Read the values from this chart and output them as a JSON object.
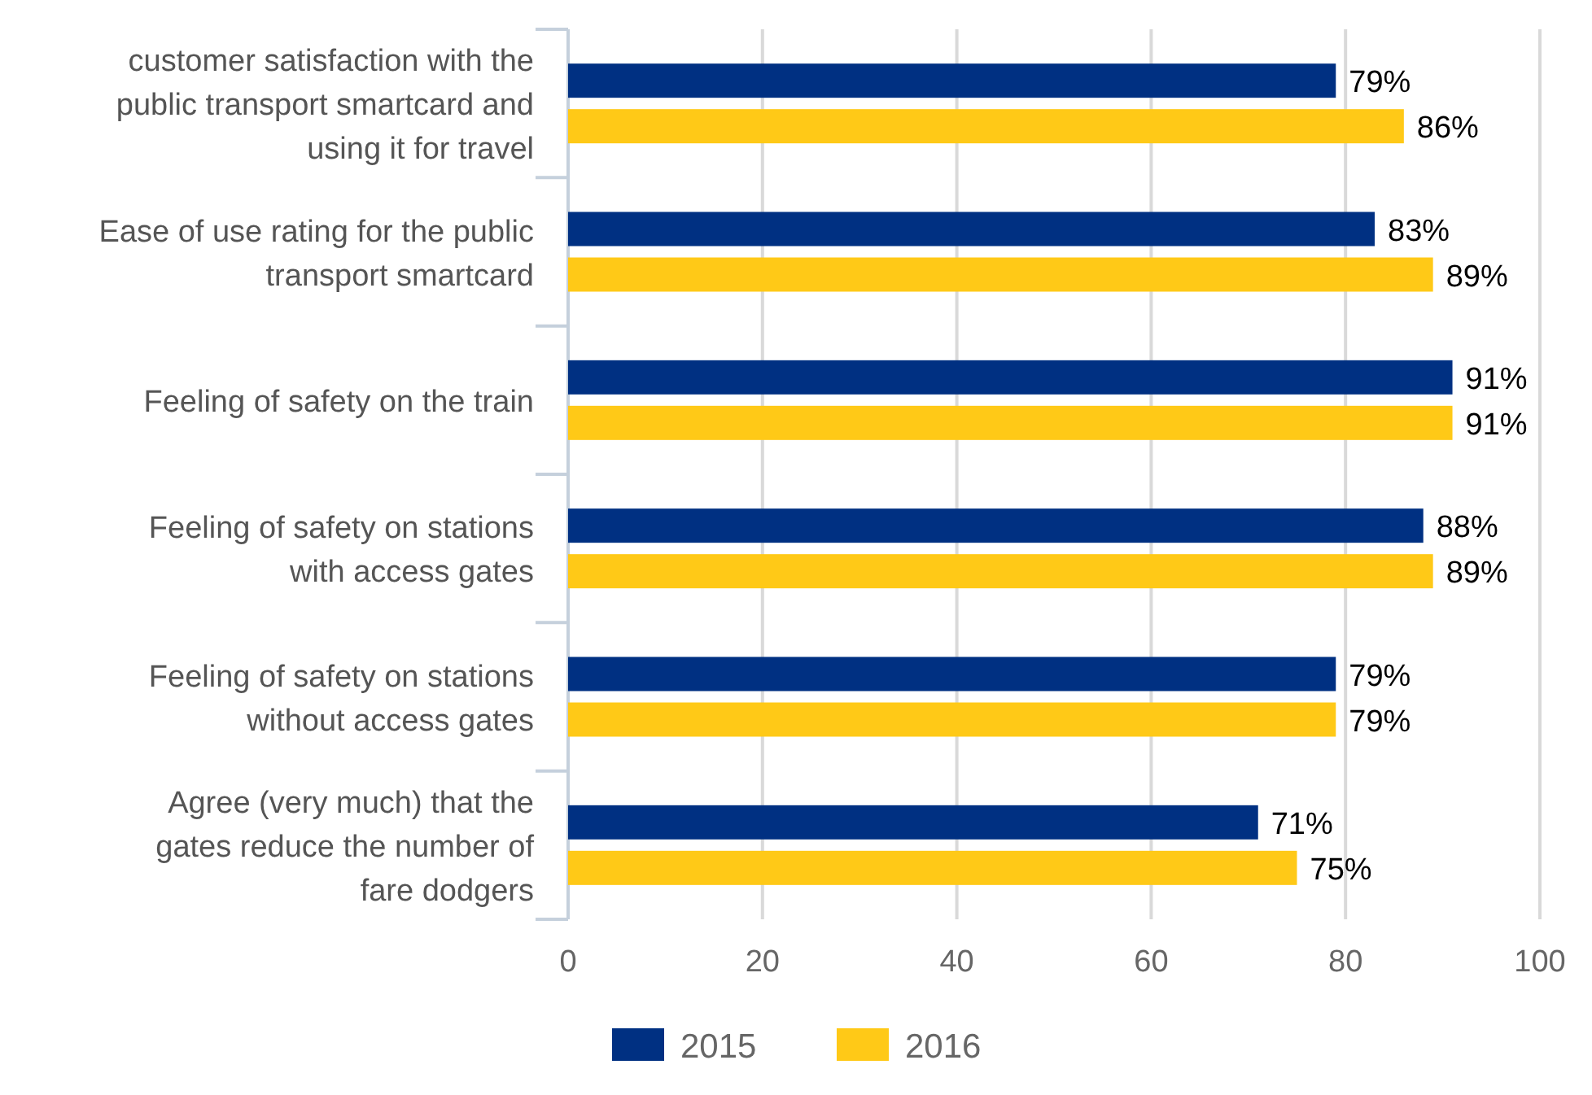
{
  "chart_data": {
    "type": "bar",
    "orientation": "horizontal",
    "categories": [
      "customer satisfaction with the\npublic transport smartcard and\nusing it for travel",
      "Ease of use rating for the public\ntransport smartcard",
      "Feeling of safety on the train",
      "Feeling of safety on stations\nwith access gates",
      "Feeling of safety on stations\nwithout access gates",
      "Agree (very much) that the\ngates reduce the number of\nfare dodgers"
    ],
    "series": [
      {
        "name": "2015",
        "color": "#003082",
        "values": [
          79,
          83,
          91,
          88,
          79,
          71
        ],
        "value_labels": [
          "79%",
          "83%",
          "91%",
          "88%",
          "79%",
          "71%"
        ]
      },
      {
        "name": "2016",
        "color": "#ffc917",
        "values": [
          86,
          89,
          91,
          89,
          79,
          75
        ],
        "value_labels": [
          "86%",
          "89%",
          "91%",
          "89%",
          "79%",
          "75%"
        ]
      }
    ],
    "xlim": [
      0,
      100
    ],
    "xticks": [
      0,
      20,
      40,
      60,
      80,
      100
    ],
    "grid": "x",
    "legend": "bottom"
  }
}
